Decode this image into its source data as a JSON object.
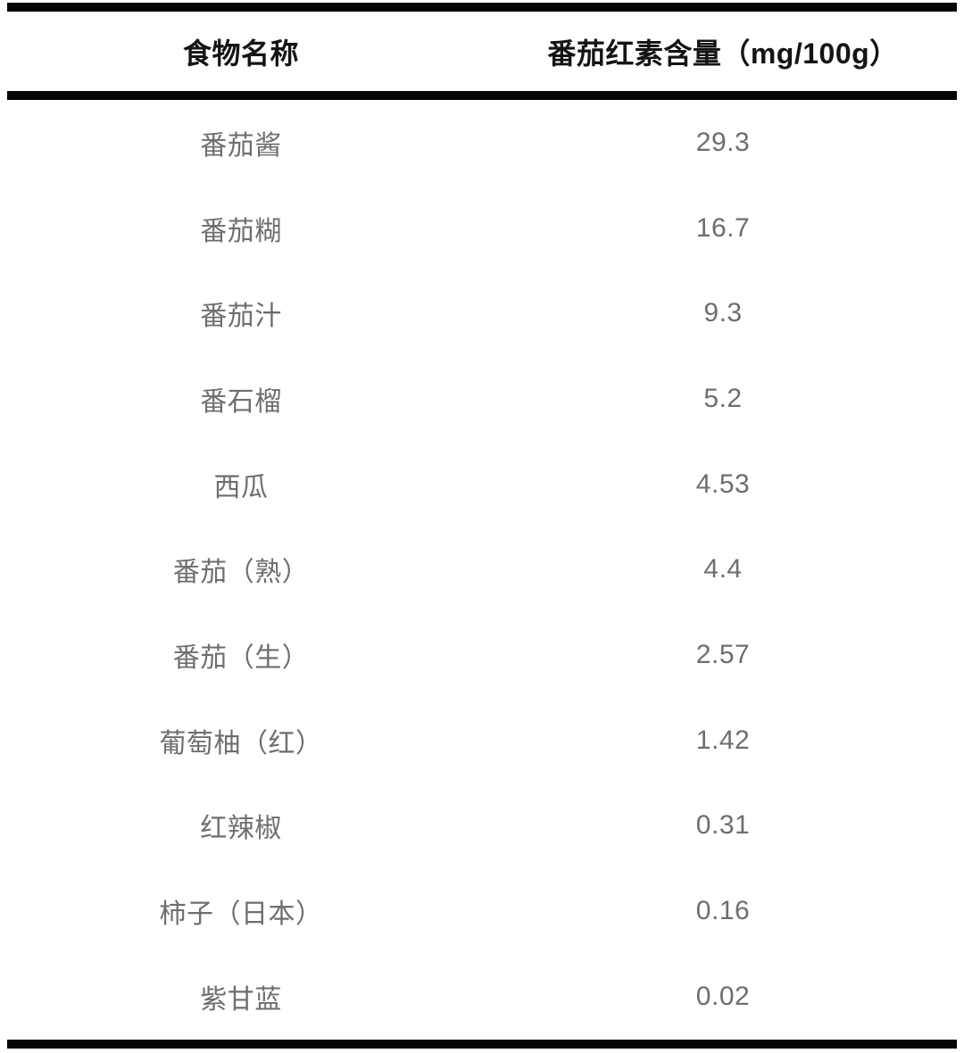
{
  "table": {
    "columns": [
      {
        "label": "食物名称"
      },
      {
        "label": "番茄红素含量（mg/100g）"
      }
    ],
    "rows": [
      {
        "food": "番茄酱",
        "value": "29.3"
      },
      {
        "food": "番茄糊",
        "value": "16.7"
      },
      {
        "food": "番茄汁",
        "value": "9.3"
      },
      {
        "food": "番石榴",
        "value": "5.2"
      },
      {
        "food": "西瓜",
        "value": "4.53"
      },
      {
        "food": "番茄（熟）",
        "value": "4.4"
      },
      {
        "food": "番茄（生）",
        "value": "2.57"
      },
      {
        "food": "葡萄柚（红）",
        "value": "1.42"
      },
      {
        "food": "红辣椒",
        "value": "0.31"
      },
      {
        "food": "柿子（日本）",
        "value": "0.16"
      },
      {
        "food": "紫甘蓝",
        "value": "0.02"
      }
    ],
    "colors": {
      "border": "#060606",
      "header_text": "#141414",
      "body_text": "#6e6e6e",
      "background": "#ffffff"
    }
  },
  "chart_data": {
    "type": "table",
    "title": "",
    "columns": [
      "食物名称",
      "番茄红素含量（mg/100g）"
    ],
    "rows": [
      [
        "番茄酱",
        29.3
      ],
      [
        "番茄糊",
        16.7
      ],
      [
        "番茄汁",
        9.3
      ],
      [
        "番石榴",
        5.2
      ],
      [
        "西瓜",
        4.53
      ],
      [
        "番茄（熟）",
        4.4
      ],
      [
        "番茄（生）",
        2.57
      ],
      [
        "葡萄柚（红）",
        1.42
      ],
      [
        "红辣椒",
        0.31
      ],
      [
        "柿子（日本）",
        0.16
      ],
      [
        "紫甘蓝",
        0.02
      ]
    ],
    "layout": {
      "header_style": "bold black, thick black rules above and below header and at table bottom",
      "cell_alignment": "center",
      "grid": "horizontal rules only (top, below header, bottom)"
    }
  }
}
